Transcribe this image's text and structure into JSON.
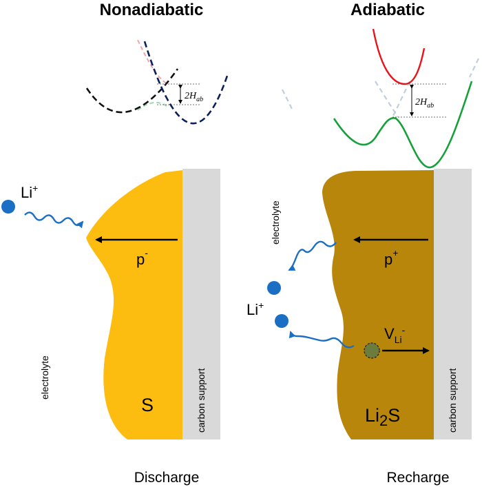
{
  "left_panel": {
    "title": "Nonadiabatic",
    "coupling_label": "2H",
    "coupling_subscript": "ab",
    "ion_label": "Li",
    "ion_charge": "+",
    "electrolyte_label": "electrolyte",
    "polarization_label": "p",
    "polarization_sign": "-",
    "material_label": "S",
    "support_label": "carbon support",
    "caption": "Discharge",
    "colors": {
      "material": "#fdbd10",
      "support": "#d9d9d9",
      "ion": "#1a6fc4",
      "curve_a": "#111111",
      "curve_b": "#0b1f5c"
    }
  },
  "right_panel": {
    "title": "Adiabatic",
    "coupling_label": "2H",
    "coupling_subscript": "ab",
    "ion_label": "Li",
    "ion_charge": "+",
    "electrolyte_label": "electrolyte",
    "polarization_label": "p",
    "polarization_sign": "+",
    "vacancy_label": "V",
    "vacancy_subscript": "Li",
    "vacancy_charge": "-",
    "material_label_main": "Li",
    "material_label_sub": "2",
    "material_label_tail": "S",
    "support_label": "carbon support",
    "caption": "Recharge",
    "colors": {
      "material": "#b8860b",
      "support": "#d9d9d9",
      "ion": "#1a6fc4",
      "upper_curve": "#e8141b",
      "lower_curve": "#16a03a",
      "vacancy": "#6b7c3d"
    }
  }
}
